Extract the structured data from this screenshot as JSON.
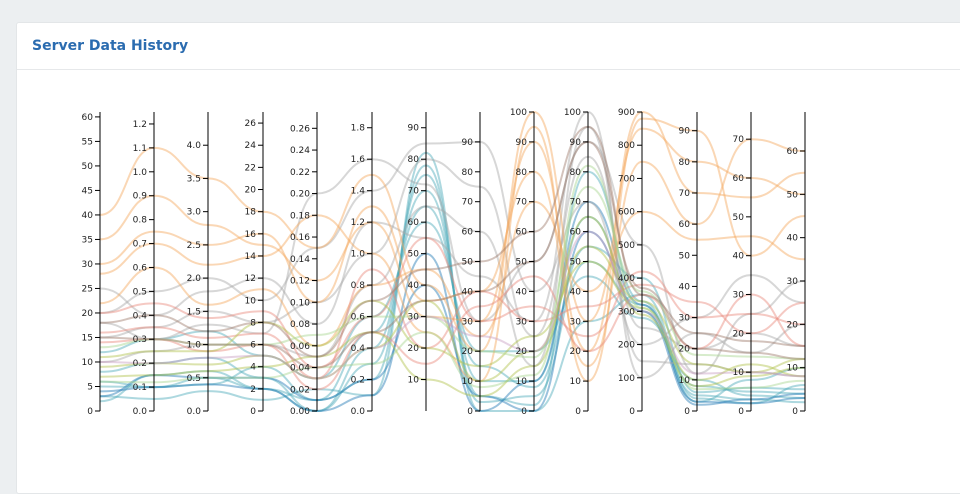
{
  "header": {
    "title": "Server Data History"
  },
  "chart_data": {
    "type": "parallel-coordinates",
    "grid": false,
    "legend": "none",
    "axes": [
      {
        "ticks": [
          0,
          5,
          10,
          15,
          20,
          25,
          30,
          35,
          40,
          45,
          50,
          55,
          60
        ],
        "labels": [
          "0",
          "5",
          "10",
          "15",
          "20",
          "25",
          "30",
          "35",
          "40",
          "45",
          "50",
          "55",
          "60"
        ],
        "domain": [
          0,
          61
        ]
      },
      {
        "ticks": [
          0,
          0.1,
          0.2,
          0.3,
          0.4,
          0.5,
          0.6,
          0.7,
          0.8,
          0.9,
          1.0,
          1.1,
          1.2
        ],
        "labels": [
          "0.0",
          "0.1",
          "0.2",
          "0.3",
          "0.4",
          "0.5",
          "0.6",
          "0.7",
          "0.8",
          "0.9",
          "1.0",
          "1.1",
          "1.2"
        ],
        "domain": [
          0,
          1.25
        ]
      },
      {
        "ticks": [
          0,
          0.5,
          1.0,
          1.5,
          2.0,
          2.5,
          3.0,
          3.5,
          4.0
        ],
        "labels": [
          "0.0",
          "0.5",
          "1.0",
          "1.5",
          "2.0",
          "2.5",
          "3.0",
          "3.5",
          "4.0"
        ],
        "domain": [
          0,
          4.5
        ]
      },
      {
        "ticks": [
          0,
          2,
          4,
          6,
          8,
          10,
          12,
          14,
          16,
          18,
          20,
          22,
          24,
          26
        ],
        "labels": [
          "0",
          "2",
          "4",
          "6",
          "8",
          "10",
          "12",
          "14",
          "16",
          "18",
          "20",
          "22",
          "24",
          "26"
        ],
        "domain": [
          0,
          27
        ]
      },
      {
        "ticks": [
          0,
          0.02,
          0.04,
          0.06,
          0.08,
          0.1,
          0.12,
          0.14,
          0.16,
          0.18,
          0.2,
          0.22,
          0.24,
          0.26
        ],
        "labels": [
          "0.00",
          "0.02",
          "0.04",
          "0.06",
          "0.08",
          "0.10",
          "0.12",
          "0.14",
          "0.16",
          "0.18",
          "0.20",
          "0.22",
          "0.24",
          "0.26"
        ],
        "domain": [
          0,
          0.275
        ]
      },
      {
        "ticks": [
          0,
          0.2,
          0.4,
          0.6,
          0.8,
          1.0,
          1.2,
          1.4,
          1.6,
          1.8
        ],
        "labels": [
          "0.0",
          "0.2",
          "0.4",
          "0.6",
          "0.8",
          "1.0",
          "1.2",
          "1.4",
          "1.6",
          "1.8"
        ],
        "domain": [
          0,
          1.9
        ]
      },
      {
        "ticks": [
          10,
          20,
          30,
          40,
          50,
          60,
          70,
          80,
          90
        ],
        "labels": [
          "10",
          "20",
          "30",
          "40",
          "50",
          "60",
          "70",
          "80",
          "90"
        ],
        "domain": [
          0,
          95
        ]
      },
      {
        "ticks": [
          0,
          10,
          20,
          30,
          40,
          50,
          60,
          70,
          80,
          90
        ],
        "labels": [
          "0",
          "10",
          "20",
          "30",
          "40",
          "50",
          "60",
          "70",
          "80",
          "90"
        ],
        "domain": [
          0,
          100
        ]
      },
      {
        "ticks": [
          0,
          10,
          20,
          30,
          40,
          50,
          60,
          70,
          80,
          90,
          100
        ],
        "labels": [
          "0",
          "10",
          "20",
          "30",
          "40",
          "50",
          "60",
          "70",
          "80",
          "90",
          "100"
        ],
        "domain": [
          0,
          100
        ]
      },
      {
        "ticks": [
          0,
          10,
          20,
          30,
          40,
          50,
          60,
          70,
          80,
          90,
          100
        ],
        "labels": [
          "0",
          "10",
          "20",
          "30",
          "40",
          "50",
          "60",
          "70",
          "80",
          "90",
          "100"
        ],
        "domain": [
          0,
          100
        ]
      },
      {
        "ticks": [
          0,
          100,
          200,
          300,
          400,
          500,
          600,
          700,
          800,
          900
        ],
        "labels": [
          "0",
          "100",
          "200",
          "300",
          "400",
          "500",
          "600",
          "700",
          "800",
          "900"
        ],
        "domain": [
          0,
          900
        ]
      },
      {
        "ticks": [
          0,
          10,
          20,
          30,
          40,
          50,
          60,
          70,
          80,
          90
        ],
        "labels": [
          "0",
          "10",
          "20",
          "30",
          "40",
          "50",
          "60",
          "70",
          "80",
          "90"
        ],
        "domain": [
          0,
          96
        ]
      },
      {
        "ticks": [
          0,
          10,
          20,
          30,
          40,
          50,
          60,
          70
        ],
        "labels": [
          "0",
          "10",
          "20",
          "30",
          "40",
          "50",
          "60",
          "70"
        ],
        "domain": [
          0,
          77
        ]
      },
      {
        "ticks": [
          0,
          10,
          20,
          30,
          40,
          50,
          60
        ],
        "labels": [
          "0",
          "10",
          "20",
          "30",
          "40",
          "50",
          "60"
        ],
        "domain": [
          0,
          69
        ]
      }
    ],
    "series": [
      {
        "color": "#4aa9b8",
        "values": [
          5,
          0.1,
          0.5,
          2,
          0.01,
          0.2,
          78,
          3,
          5,
          50,
          320,
          5,
          3,
          2
        ]
      },
      {
        "color": "#4aa9b8",
        "values": [
          8,
          0.2,
          0.8,
          3,
          0.0,
          0.4,
          70,
          10,
          10,
          65,
          300,
          8,
          5,
          4
        ]
      },
      {
        "color": "#4aa9b8",
        "values": [
          3,
          0.05,
          0.3,
          1,
          0.02,
          0.1,
          82,
          0,
          0,
          30,
          350,
          4,
          2,
          6
        ]
      },
      {
        "color": "#4aa9b8",
        "values": [
          12,
          0.3,
          1.2,
          5,
          0.03,
          0.6,
          60,
          20,
          20,
          45,
          280,
          10,
          4,
          3
        ]
      },
      {
        "color": "#4aa9b8",
        "values": [
          2,
          0.15,
          0.6,
          2,
          0.0,
          0.3,
          75,
          5,
          2,
          80,
          330,
          3,
          8,
          10
        ]
      },
      {
        "color": "#4aa9b8",
        "values": [
          6,
          0.1,
          0.4,
          4,
          0.01,
          0.5,
          65,
          15,
          8,
          55,
          400,
          6,
          6,
          5
        ]
      },
      {
        "color": "#1f77b4",
        "values": [
          4,
          0.1,
          0.4,
          2,
          0.0,
          0.1,
          50,
          0,
          10,
          70,
          320,
          3,
          2,
          3
        ]
      },
      {
        "color": "#1f77b4",
        "values": [
          3,
          0.15,
          0.5,
          3,
          0.01,
          0.2,
          40,
          5,
          0,
          60,
          300,
          2,
          3,
          4
        ]
      },
      {
        "color": "#a6a6a6",
        "values": [
          10,
          0.25,
          1.0,
          6,
          0.05,
          0.8,
          65,
          60,
          15,
          95,
          150,
          15,
          10,
          8
        ]
      },
      {
        "color": "#a6a6a6",
        "values": [
          15,
          0.35,
          1.5,
          8,
          0.1,
          1.0,
          80,
          75,
          25,
          85,
          250,
          20,
          20,
          15
        ]
      },
      {
        "color": "#a6a6a6",
        "values": [
          20,
          0.5,
          2.0,
          10,
          0.15,
          1.4,
          85,
          90,
          40,
          70,
          200,
          30,
          35,
          25
        ]
      },
      {
        "color": "#a6a6a6",
        "values": [
          25,
          0.4,
          1.8,
          12,
          0.08,
          1.2,
          55,
          45,
          30,
          100,
          100,
          25,
          15,
          20
        ]
      },
      {
        "color": "#a6a6a6",
        "values": [
          18,
          0.3,
          1.3,
          7,
          0.2,
          1.6,
          72,
          30,
          50,
          90,
          500,
          12,
          25,
          30
        ]
      },
      {
        "color": "#f5a65b",
        "values": [
          40,
          1.1,
          3.5,
          18,
          0.15,
          1.5,
          40,
          20,
          100,
          30,
          850,
          80,
          60,
          50
        ]
      },
      {
        "color": "#f5a65b",
        "values": [
          35,
          0.9,
          2.8,
          15,
          0.12,
          1.2,
          30,
          30,
          90,
          20,
          900,
          70,
          55,
          55
        ]
      },
      {
        "color": "#f5a65b",
        "values": [
          28,
          0.7,
          2.2,
          14,
          0.18,
          1.0,
          25,
          10,
          95,
          10,
          880,
          90,
          40,
          45
        ]
      },
      {
        "color": "#f5a65b",
        "values": [
          30,
          0.75,
          2.5,
          16,
          0.1,
          1.3,
          35,
          40,
          80,
          15,
          750,
          60,
          70,
          60
        ]
      },
      {
        "color": "#f5a65b",
        "values": [
          22,
          0.6,
          1.6,
          11,
          0.06,
          0.8,
          45,
          25,
          70,
          40,
          600,
          55,
          45,
          35
        ]
      },
      {
        "color": "#e8877a",
        "values": [
          20,
          0.45,
          1.4,
          9,
          0.04,
          0.6,
          55,
          30,
          35,
          25,
          420,
          30,
          25,
          20
        ]
      },
      {
        "color": "#e8877a",
        "values": [
          16,
          0.35,
          1.1,
          7,
          0.03,
          0.9,
          20,
          40,
          30,
          35,
          380,
          35,
          20,
          25
        ]
      },
      {
        "color": "#e8877a",
        "values": [
          14,
          0.3,
          0.9,
          6,
          0.02,
          0.5,
          15,
          35,
          45,
          20,
          350,
          20,
          30,
          15
        ]
      },
      {
        "color": "#b0c24a",
        "values": [
          9,
          0.2,
          0.7,
          5,
          0.03,
          0.4,
          35,
          10,
          20,
          55,
          330,
          15,
          10,
          12
        ]
      },
      {
        "color": "#b0c24a",
        "values": [
          11,
          0.25,
          0.9,
          8,
          0.06,
          0.7,
          20,
          15,
          25,
          50,
          310,
          10,
          12,
          8
        ]
      },
      {
        "color": "#b0c24a",
        "values": [
          7,
          0.15,
          0.6,
          4,
          0.05,
          0.5,
          10,
          5,
          15,
          65,
          290,
          8,
          9,
          10
        ]
      },
      {
        "color": "#a6d48f",
        "values": [
          13,
          0.3,
          1.0,
          6,
          0.07,
          0.6,
          30,
          20,
          18,
          75,
          360,
          18,
          14,
          12
        ]
      },
      {
        "color": "#a6d48f",
        "values": [
          6,
          0.12,
          0.5,
          3,
          0.04,
          0.3,
          25,
          8,
          12,
          82,
          310,
          7,
          6,
          7
        ]
      },
      {
        "color": "#9e7a6a",
        "values": [
          18,
          0.4,
          1.2,
          8,
          0.05,
          0.7,
          45,
          50,
          60,
          95,
          350,
          25,
          18,
          15
        ]
      },
      {
        "color": "#9e7a6a",
        "values": [
          15,
          0.3,
          1.0,
          6,
          0.04,
          0.5,
          35,
          40,
          50,
          90,
          370,
          20,
          15,
          12
        ]
      },
      {
        "color": "#c79ec2",
        "values": [
          10,
          0.2,
          0.8,
          5,
          0.03,
          0.4,
          30,
          25,
          20,
          60,
          300,
          12,
          10,
          8
        ]
      }
    ]
  }
}
